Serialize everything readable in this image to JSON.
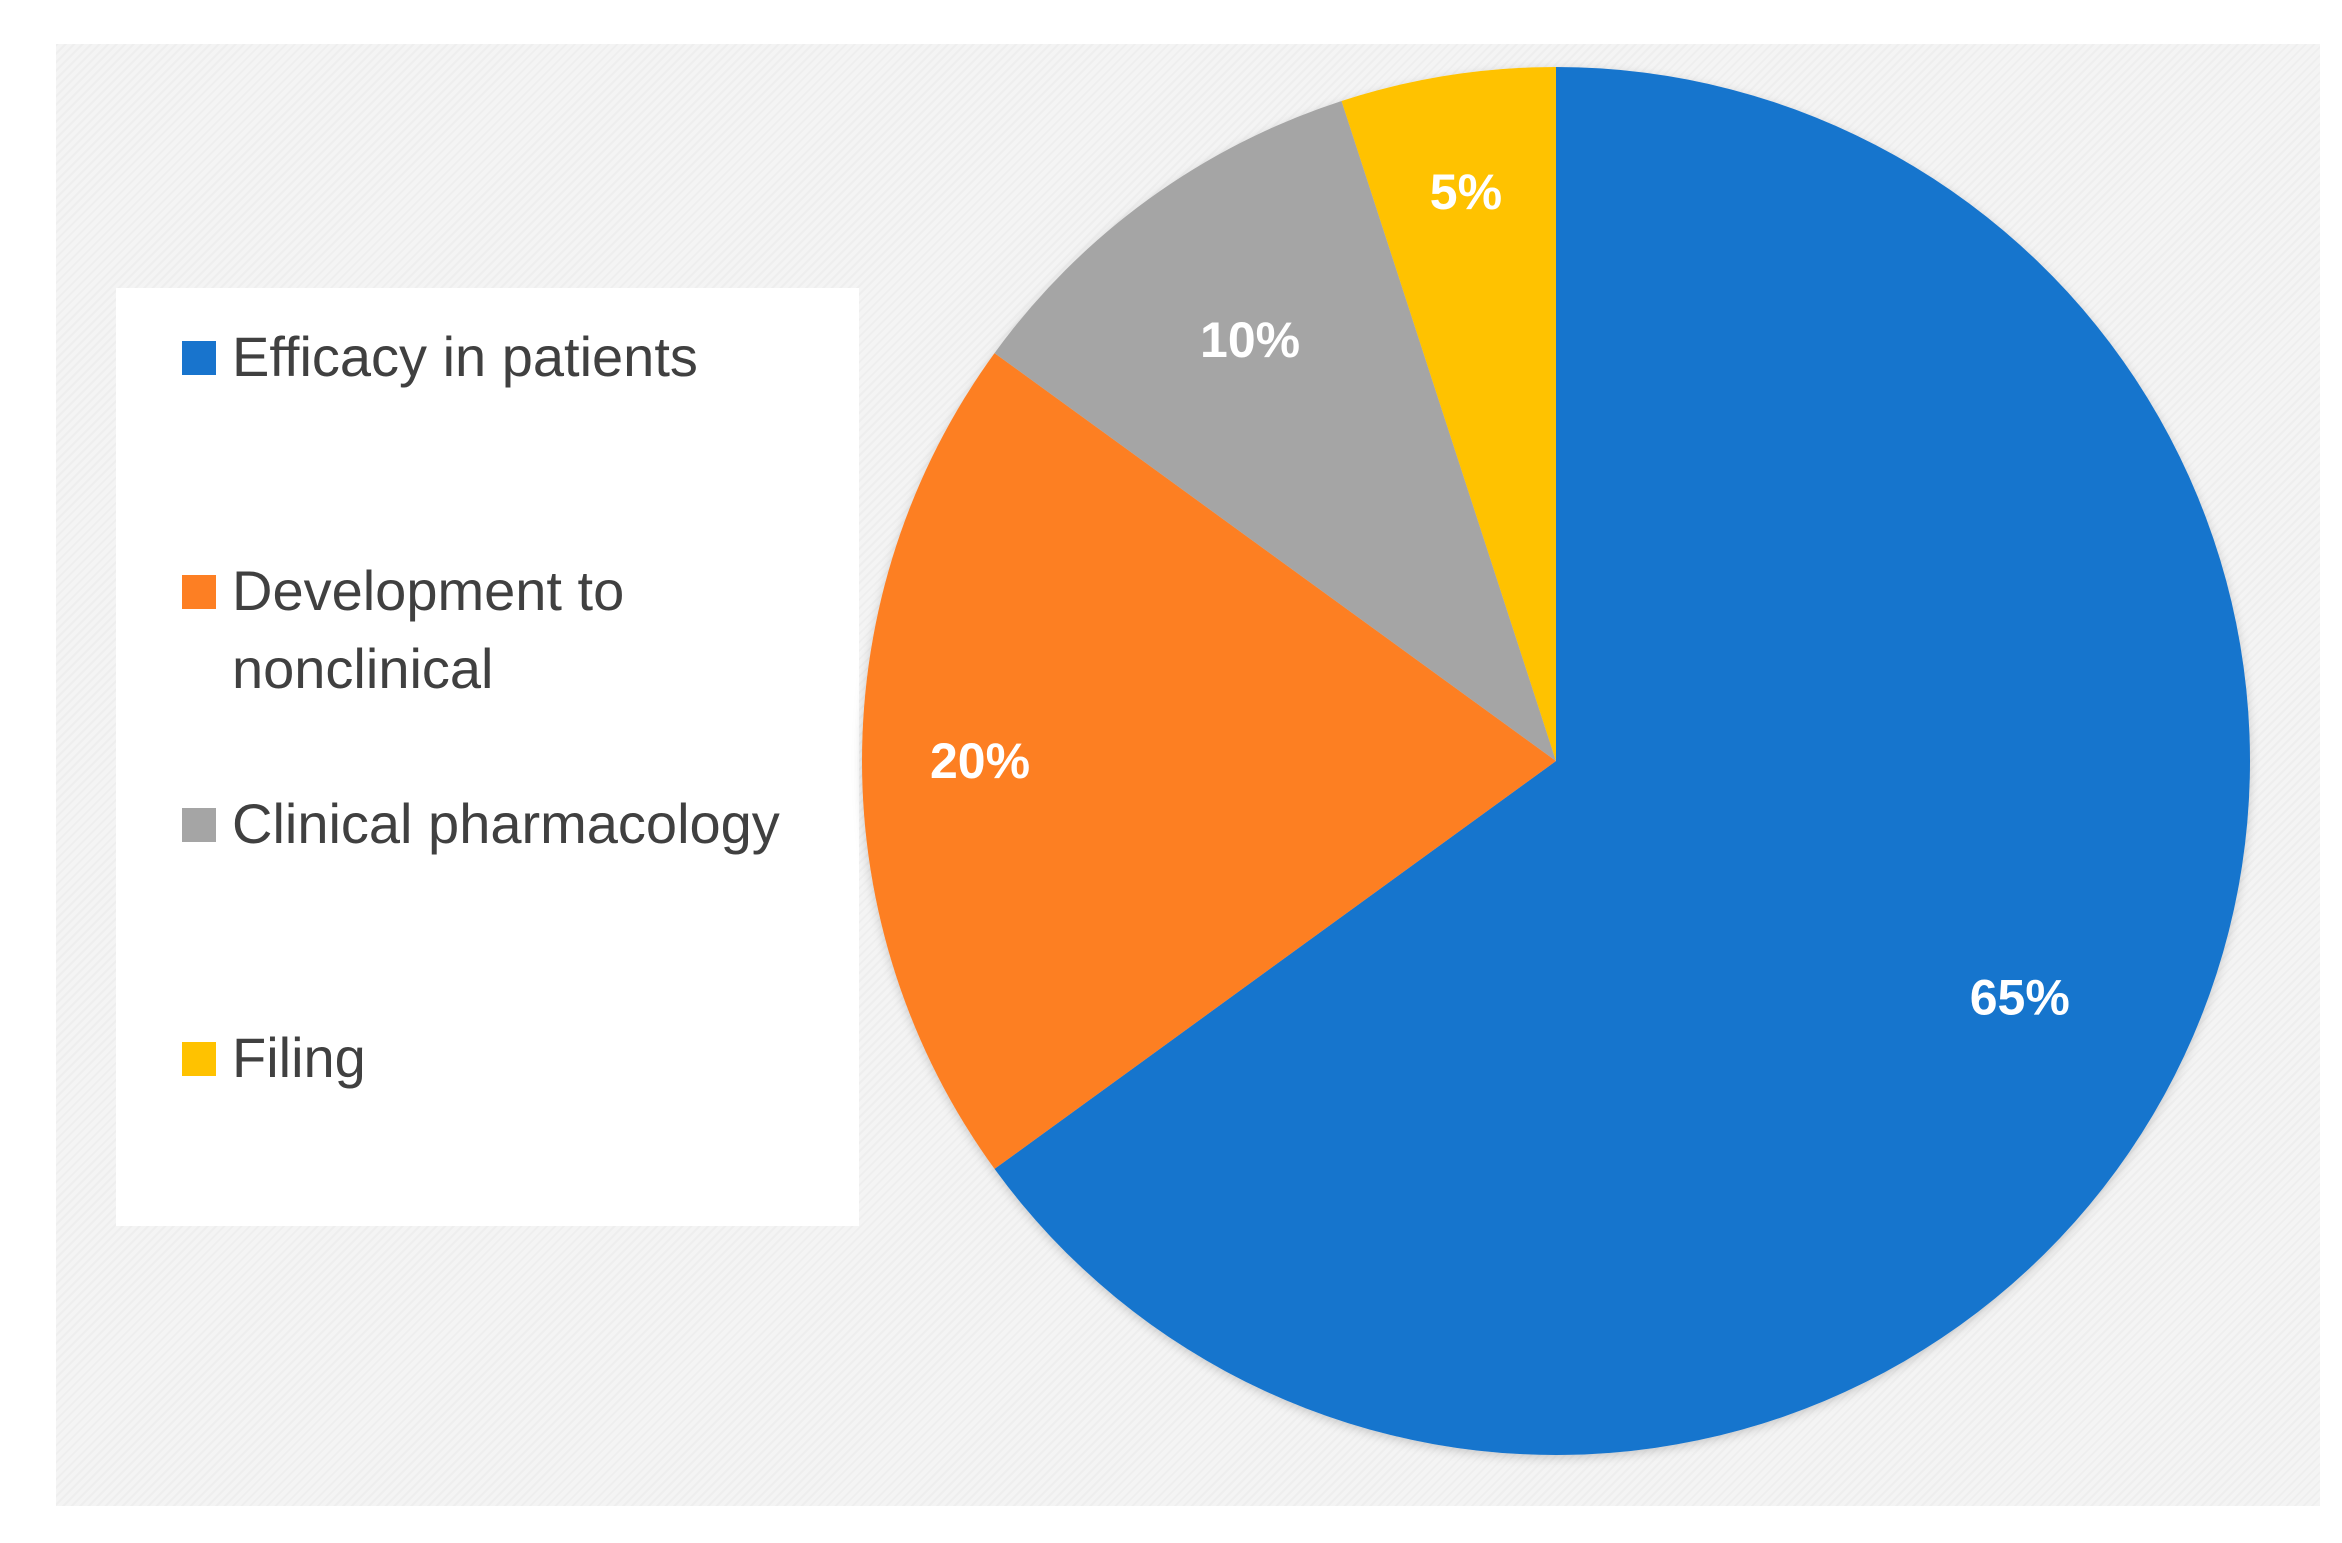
{
  "chart_data": {
    "type": "pie",
    "title": "",
    "categories": [
      "Efficacy in patients",
      "Development to nonclinical",
      "Clinical pharmacology",
      "Filing"
    ],
    "values": [
      65,
      20,
      10,
      5
    ],
    "value_labels": [
      "65%",
      "20%",
      "10%",
      "5%"
    ],
    "colors": [
      "#1874cd",
      "#fd7f23",
      "#a5a5a5",
      "#ffc200"
    ],
    "start_angle": "12 o'clock",
    "direction": "clockwise",
    "legend": {
      "position": "left",
      "entries": [
        "Efficacy in patients",
        "Development to nonclinical",
        "Clinical pharmacology",
        "Filing"
      ]
    }
  }
}
